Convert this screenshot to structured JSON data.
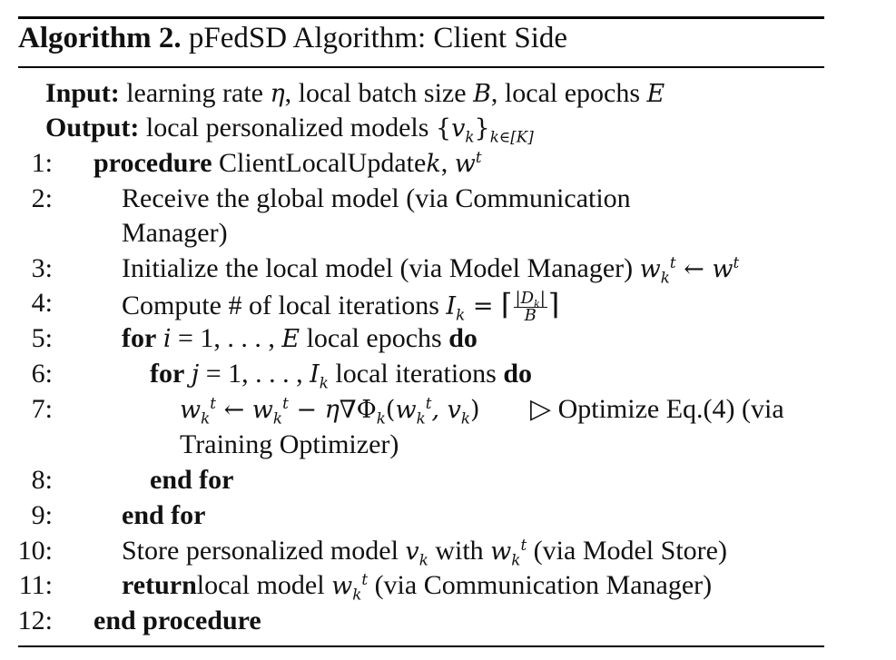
{
  "title": {
    "label": "Algorithm 2.",
    "text": "pFedSD Algorithm: Client Side"
  },
  "input": {
    "label": "Input:",
    "text": "learning rate η, local batch size B, local epochs E"
  },
  "output": {
    "label": "Output:",
    "text": "local personalized models {v_k}_{k∈[K]}"
  },
  "steps": [
    {
      "num": "1:",
      "kw": "procedure",
      "text": "ClientLocalUpdatek, w^t"
    },
    {
      "num": "2:",
      "text": "Receive the global model (via Communication",
      "cont": "Manager)"
    },
    {
      "num": "3:",
      "text": "Initialize the local model (via Model Manager) w_k^t ← w^t"
    },
    {
      "num": "4:",
      "text": "Compute # of local iterations I_k = ⌈|D_k|/B⌉"
    },
    {
      "num": "5:",
      "kw": "for",
      "text": "i = 1, . . . , E local epochs",
      "kw2": "do"
    },
    {
      "num": "6:",
      "kw": "for",
      "text": "j = 1, . . . , I_k local iterations",
      "kw2": "do"
    },
    {
      "num": "7:",
      "text": "w_k^t ← w_k^t − η∇Φ_k(w_k^t, v_k)",
      "comment": "▷ Optimize Eq.(4) (via",
      "cont": "Training Optimizer)"
    },
    {
      "num": "8:",
      "kw": "end for"
    },
    {
      "num": "9:",
      "kw": "end for"
    },
    {
      "num": "10:",
      "text": "Store personalized model v_k with w_k^t (via Model Store)"
    },
    {
      "num": "11:",
      "kw": "return",
      "text": "local model w_k^t (via Communication Manager)"
    },
    {
      "num": "12:",
      "kw": "end procedure"
    }
  ]
}
